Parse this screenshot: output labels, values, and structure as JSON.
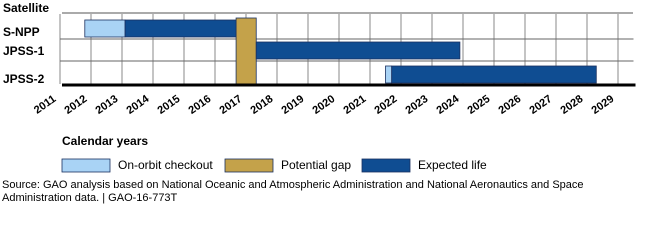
{
  "chart_data": {
    "type": "gantt",
    "y_label": "Satellite",
    "x_label": "Calendar years",
    "categories": [
      "S-NPP",
      "JPSS-1",
      "JPSS-2"
    ],
    "series": [
      {
        "name": "On-orbit checkout",
        "color": "#a9d3f5",
        "start": [
          2011.8,
          2017.1,
          2021.5
        ],
        "end": [
          2013.1,
          2017.33,
          2021.7
        ]
      },
      {
        "name": "Potential gap",
        "color": "#c4a24a",
        "full_height": true,
        "start": [
          2016.68
        ],
        "end": [
          2017.33
        ]
      },
      {
        "name": "Expected life",
        "color": "#0f4d92",
        "start": [
          2013.1,
          2017.33,
          2021.7
        ],
        "end": [
          2016.68,
          2023.9,
          2028.3
        ]
      }
    ],
    "xlim": [
      2011,
      2029.5
    ],
    "xticks": [
      2011,
      2012,
      2013,
      2014,
      2015,
      2016,
      2017,
      2018,
      2019,
      2020,
      2021,
      2022,
      2023,
      2024,
      2025,
      2026,
      2027,
      2028,
      2029
    ],
    "grid": true,
    "source": "Source: GAO analysis based on National Oceanic and Atmospheric Administration and National Aeronautics and Space Administration data.  |  GAO-16-773T"
  }
}
